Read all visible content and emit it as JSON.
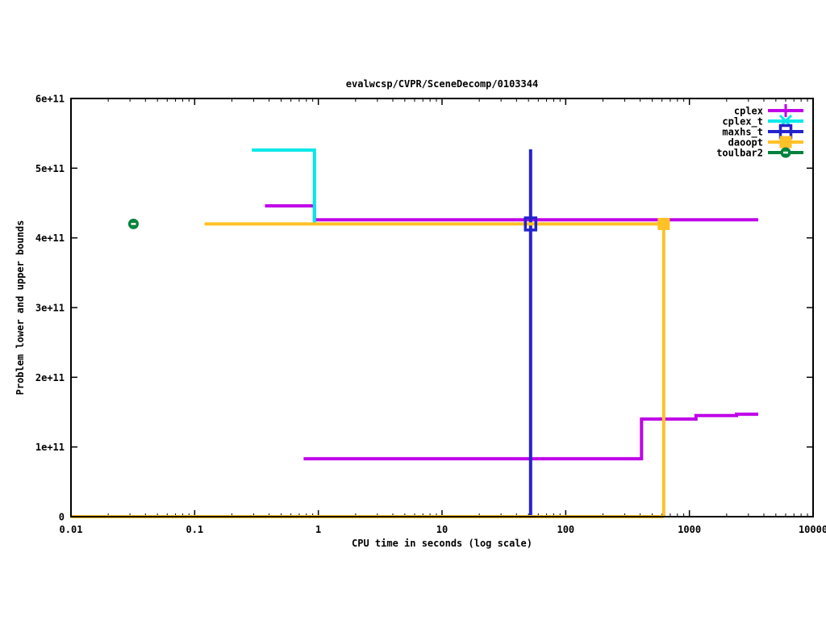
{
  "chart_data": {
    "type": "line",
    "title": "evalwcsp/CVPR/SceneDecomp/0103344",
    "xlabel": "CPU time in seconds (log scale)",
    "ylabel": "Problem lower and upper bounds",
    "x_scale": "log",
    "y_scale": "linear",
    "xlim": [
      0.01,
      10000
    ],
    "ylim": [
      0,
      600000000000.0
    ],
    "grid": false,
    "legend_position": "top-right-inside",
    "x_ticks": [
      {
        "v": 0.01,
        "label": "0.01"
      },
      {
        "v": 0.1,
        "label": "0.1"
      },
      {
        "v": 1,
        "label": "1"
      },
      {
        "v": 10,
        "label": "10"
      },
      {
        "v": 100,
        "label": "100"
      },
      {
        "v": 1000,
        "label": "1000"
      },
      {
        "v": 10000,
        "label": "10000"
      }
    ],
    "y_ticks": [
      {
        "v": 0,
        "label": "0"
      },
      {
        "v": 100000000000.0,
        "label": "1e+11"
      },
      {
        "v": 200000000000.0,
        "label": "2e+11"
      },
      {
        "v": 300000000000.0,
        "label": "3e+11"
      },
      {
        "v": 400000000000.0,
        "label": "4e+11"
      },
      {
        "v": 500000000000.0,
        "label": "5e+11"
      },
      {
        "v": 600000000000.0,
        "label": "6e+11"
      }
    ],
    "series": [
      {
        "name": "cplex",
        "color": "#bf00e8",
        "marker": "plus",
        "segments": [
          [
            [
              0.37,
              446000000000.0
            ],
            [
              0.93,
              446000000000.0
            ],
            [
              0.93,
              426000000000.0
            ],
            [
              3600,
              426000000000.0
            ]
          ],
          [
            [
              0.76,
              83000000000.0
            ],
            [
              410,
              83000000000.0
            ],
            [
              410,
              140000000000.0
            ],
            [
              1130,
              140000000000.0
            ],
            [
              1130,
              145000000000.0
            ],
            [
              2400,
              145000000000.0
            ],
            [
              2400,
              147000000000.0
            ],
            [
              3600,
              147000000000.0
            ]
          ]
        ],
        "marker_points": []
      },
      {
        "name": "cplex_t",
        "color": "#00e8e8",
        "marker": "cross",
        "segments": [
          [
            [
              0.29,
              526000000000.0
            ],
            [
              0.93,
              526000000000.0
            ],
            [
              0.93,
              420000000000.0
            ]
          ]
        ],
        "marker_points": []
      },
      {
        "name": "maxhs_t",
        "color": "#2323cd",
        "marker": "square-open",
        "segments": [
          [
            [
              52,
              527000000000.0
            ],
            [
              52,
              0
            ]
          ]
        ],
        "marker_points": [
          [
            52,
            420000000000.0
          ]
        ]
      },
      {
        "name": "daoopt",
        "color": "#ffc125",
        "marker": "square-filled",
        "segments": [
          [
            [
              0.12,
              420000000000.0
            ],
            [
              620,
              420000000000.0
            ],
            [
              620,
              0
            ]
          ],
          [
            [
              0.01,
              0
            ],
            [
              620,
              0
            ]
          ]
        ],
        "marker_points": [
          [
            620,
            420000000000.0
          ]
        ]
      },
      {
        "name": "toulbar2",
        "color": "#00823c",
        "marker": "circle-dash",
        "segments": [],
        "marker_points": [
          [
            0.032,
            420000000000.0
          ]
        ]
      }
    ]
  }
}
